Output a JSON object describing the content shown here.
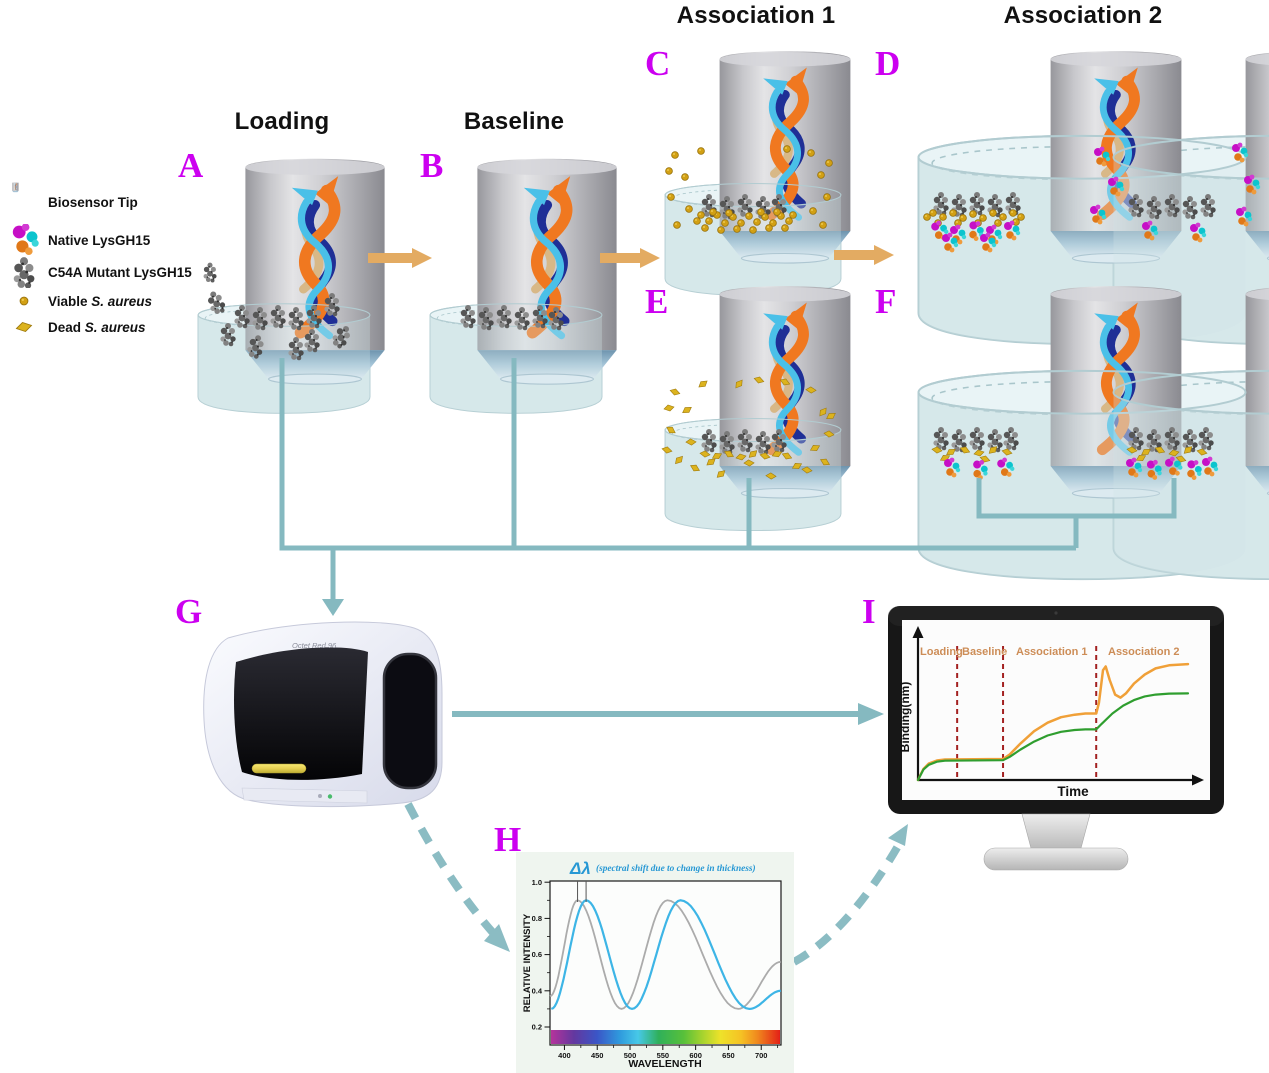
{
  "legend": {
    "items": [
      {
        "icon": "biosensor-tip-icon",
        "label": "Biosensor Tip"
      },
      {
        "icon": "native-lysgh15-icon",
        "label": "Native LysGH15"
      },
      {
        "icon": "c54a-mutant-lysgh15-icon",
        "label": "C54A Mutant LysGH15"
      },
      {
        "icon": "viable-s-aureus-icon",
        "prefix": "Viable ",
        "italic": "S. aureus"
      },
      {
        "icon": "dead-s-aureus-icon",
        "prefix": "Dead ",
        "italic": "S. aureus"
      }
    ]
  },
  "stages": {
    "loading": "Loading",
    "baseline": "Baseline",
    "association1": "Association 1",
    "association2": "Association 2"
  },
  "letters": {
    "a": "A",
    "b": "B",
    "c": "C",
    "d": "D",
    "e": "E",
    "f": "F",
    "g": "G",
    "h": "H",
    "i": "I"
  },
  "instrument": {
    "model": "Octet Red 96"
  },
  "colors": {
    "panel_letter": "#cc00f0",
    "flow_arrow_tan": "#e3ab62",
    "connector_teal": "#85b9c0",
    "well_liquid": "#d9eaec",
    "helix_orange": "#f07820",
    "helix_cyan": "#4ac0e8",
    "helix_navy": "#1f2f96",
    "helix_tan": "#d8b887",
    "native_magenta": "#c60fc6",
    "native_cyan": "#0cc4ce",
    "native_orange": "#e07818",
    "mutant_gray": "#6a6a6a",
    "viable_gold": "#d2a014",
    "dead_gold": "#dcb31e",
    "sensor_orange": "#f0a038",
    "sensor_green": "#2f9e2f",
    "phase_divider_red": "#a32020",
    "phase_label_tan": "#cd8d57",
    "spectrum_blue": "#3db5e6",
    "spectrum_gray": "#ababab"
  },
  "chart_data": [
    {
      "id": "spectral_shift",
      "type": "line",
      "xlabel": "WAVELENGTH",
      "ylabel": "RELATIVE INTENSITY",
      "x_ticks": [
        400,
        450,
        500,
        550,
        600,
        650,
        700
      ],
      "y_ticks": [
        0.2,
        0.4,
        0.6,
        0.8,
        1.0
      ],
      "xlim": [
        378,
        730
      ],
      "ylim": [
        0.13,
        1.0
      ],
      "grid": false,
      "annotation": {
        "delta_symbol": "Δλ",
        "note": "(spectral shift due to change in thickness)"
      },
      "marker_lines_x": [
        420,
        433
      ],
      "series": [
        {
          "name": "reference spectrum",
          "color": "#ababab",
          "extrema": [
            [
              378,
              0.37
            ],
            [
              420,
              0.9
            ],
            [
              487,
              0.3
            ],
            [
              557,
              0.9
            ],
            [
              665,
              0.3
            ],
            [
              730,
              0.56
            ]
          ]
        },
        {
          "name": "shifted spectrum",
          "color": "#3db5e6",
          "extrema": [
            [
              380,
              0.3
            ],
            [
              433,
              0.9
            ],
            [
              503,
              0.3
            ],
            [
              577,
              0.9
            ],
            [
              682,
              0.3
            ],
            [
              730,
              0.4
            ]
          ]
        }
      ]
    },
    {
      "id": "sensorgram",
      "type": "line",
      "xlabel": "Time",
      "ylabel": "Binding(nm)",
      "phases": [
        "Loading",
        "Baseline",
        "Association 1",
        "Association 2"
      ],
      "phase_boundaries_t": [
        14.5,
        31.5,
        66
      ],
      "xlim": [
        0,
        100
      ],
      "ylim": [
        0,
        1
      ],
      "grid": false,
      "series": [
        {
          "name": "native LysGH15 sensor",
          "color": "#f0a038",
          "points": [
            [
              0,
              0
            ],
            [
              2,
              0.09
            ],
            [
              4,
              0.135
            ],
            [
              7,
              0.16
            ],
            [
              10,
              0.168
            ],
            [
              31.5,
              0.172
            ],
            [
              34,
              0.21
            ],
            [
              38,
              0.3
            ],
            [
              43,
              0.4
            ],
            [
              48,
              0.47
            ],
            [
              53,
              0.515
            ],
            [
              58,
              0.535
            ],
            [
              62,
              0.545
            ],
            [
              66,
              0.545
            ],
            [
              67,
              0.63
            ],
            [
              68.5,
              0.9
            ],
            [
              69.5,
              0.93
            ],
            [
              71,
              0.82
            ],
            [
              73,
              0.7
            ],
            [
              75,
              0.675
            ],
            [
              77,
              0.71
            ],
            [
              80,
              0.79
            ],
            [
              84,
              0.865
            ],
            [
              88,
              0.915
            ],
            [
              93,
              0.94
            ],
            [
              100,
              0.95
            ]
          ]
        },
        {
          "name": "C54A mutant sensor",
          "color": "#2f9e2f",
          "points": [
            [
              0,
              0
            ],
            [
              2,
              0.085
            ],
            [
              4,
              0.125
            ],
            [
              7,
              0.15
            ],
            [
              10,
              0.158
            ],
            [
              31.5,
              0.162
            ],
            [
              34,
              0.19
            ],
            [
              38,
              0.25
            ],
            [
              43,
              0.315
            ],
            [
              48,
              0.365
            ],
            [
              53,
              0.395
            ],
            [
              58,
              0.41
            ],
            [
              62,
              0.415
            ],
            [
              66,
              0.415
            ],
            [
              68,
              0.46
            ],
            [
              72,
              0.545
            ],
            [
              76,
              0.61
            ],
            [
              80,
              0.655
            ],
            [
              84,
              0.685
            ],
            [
              88,
              0.7
            ],
            [
              93,
              0.708
            ],
            [
              100,
              0.71
            ]
          ]
        }
      ]
    }
  ]
}
